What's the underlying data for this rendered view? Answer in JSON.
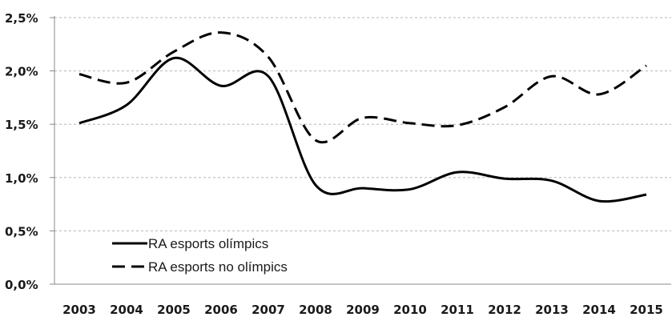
{
  "chart_data": {
    "type": "line",
    "title": "",
    "xlabel": "",
    "ylabel": "",
    "categories": [
      "2003",
      "2004",
      "2005",
      "2006",
      "2007",
      "2008",
      "2009",
      "2010",
      "2011",
      "2012",
      "2013",
      "2014",
      "2015"
    ],
    "y_tick_labels": [
      "0,0%",
      "0,5%",
      "1,0%",
      "1,5%",
      "2,0%",
      "2,5%"
    ],
    "y_ticks": [
      0,
      0.5,
      1.0,
      1.5,
      2.0,
      2.5
    ],
    "ylim": [
      0,
      2.5
    ],
    "grid": true,
    "legend_position": "bottom-left",
    "series": [
      {
        "name": "RA esports olímpics",
        "style": "solid",
        "color": "#000000",
        "values": [
          1.51,
          1.68,
          2.12,
          1.86,
          1.95,
          0.93,
          0.9,
          0.89,
          1.05,
          0.99,
          0.97,
          0.78,
          0.84
        ]
      },
      {
        "name": "RA esports no olímpics",
        "style": "dashed",
        "color": "#000000",
        "values": [
          1.97,
          1.89,
          2.18,
          2.36,
          2.13,
          1.35,
          1.56,
          1.51,
          1.49,
          1.66,
          1.95,
          1.78,
          2.05
        ]
      }
    ]
  }
}
